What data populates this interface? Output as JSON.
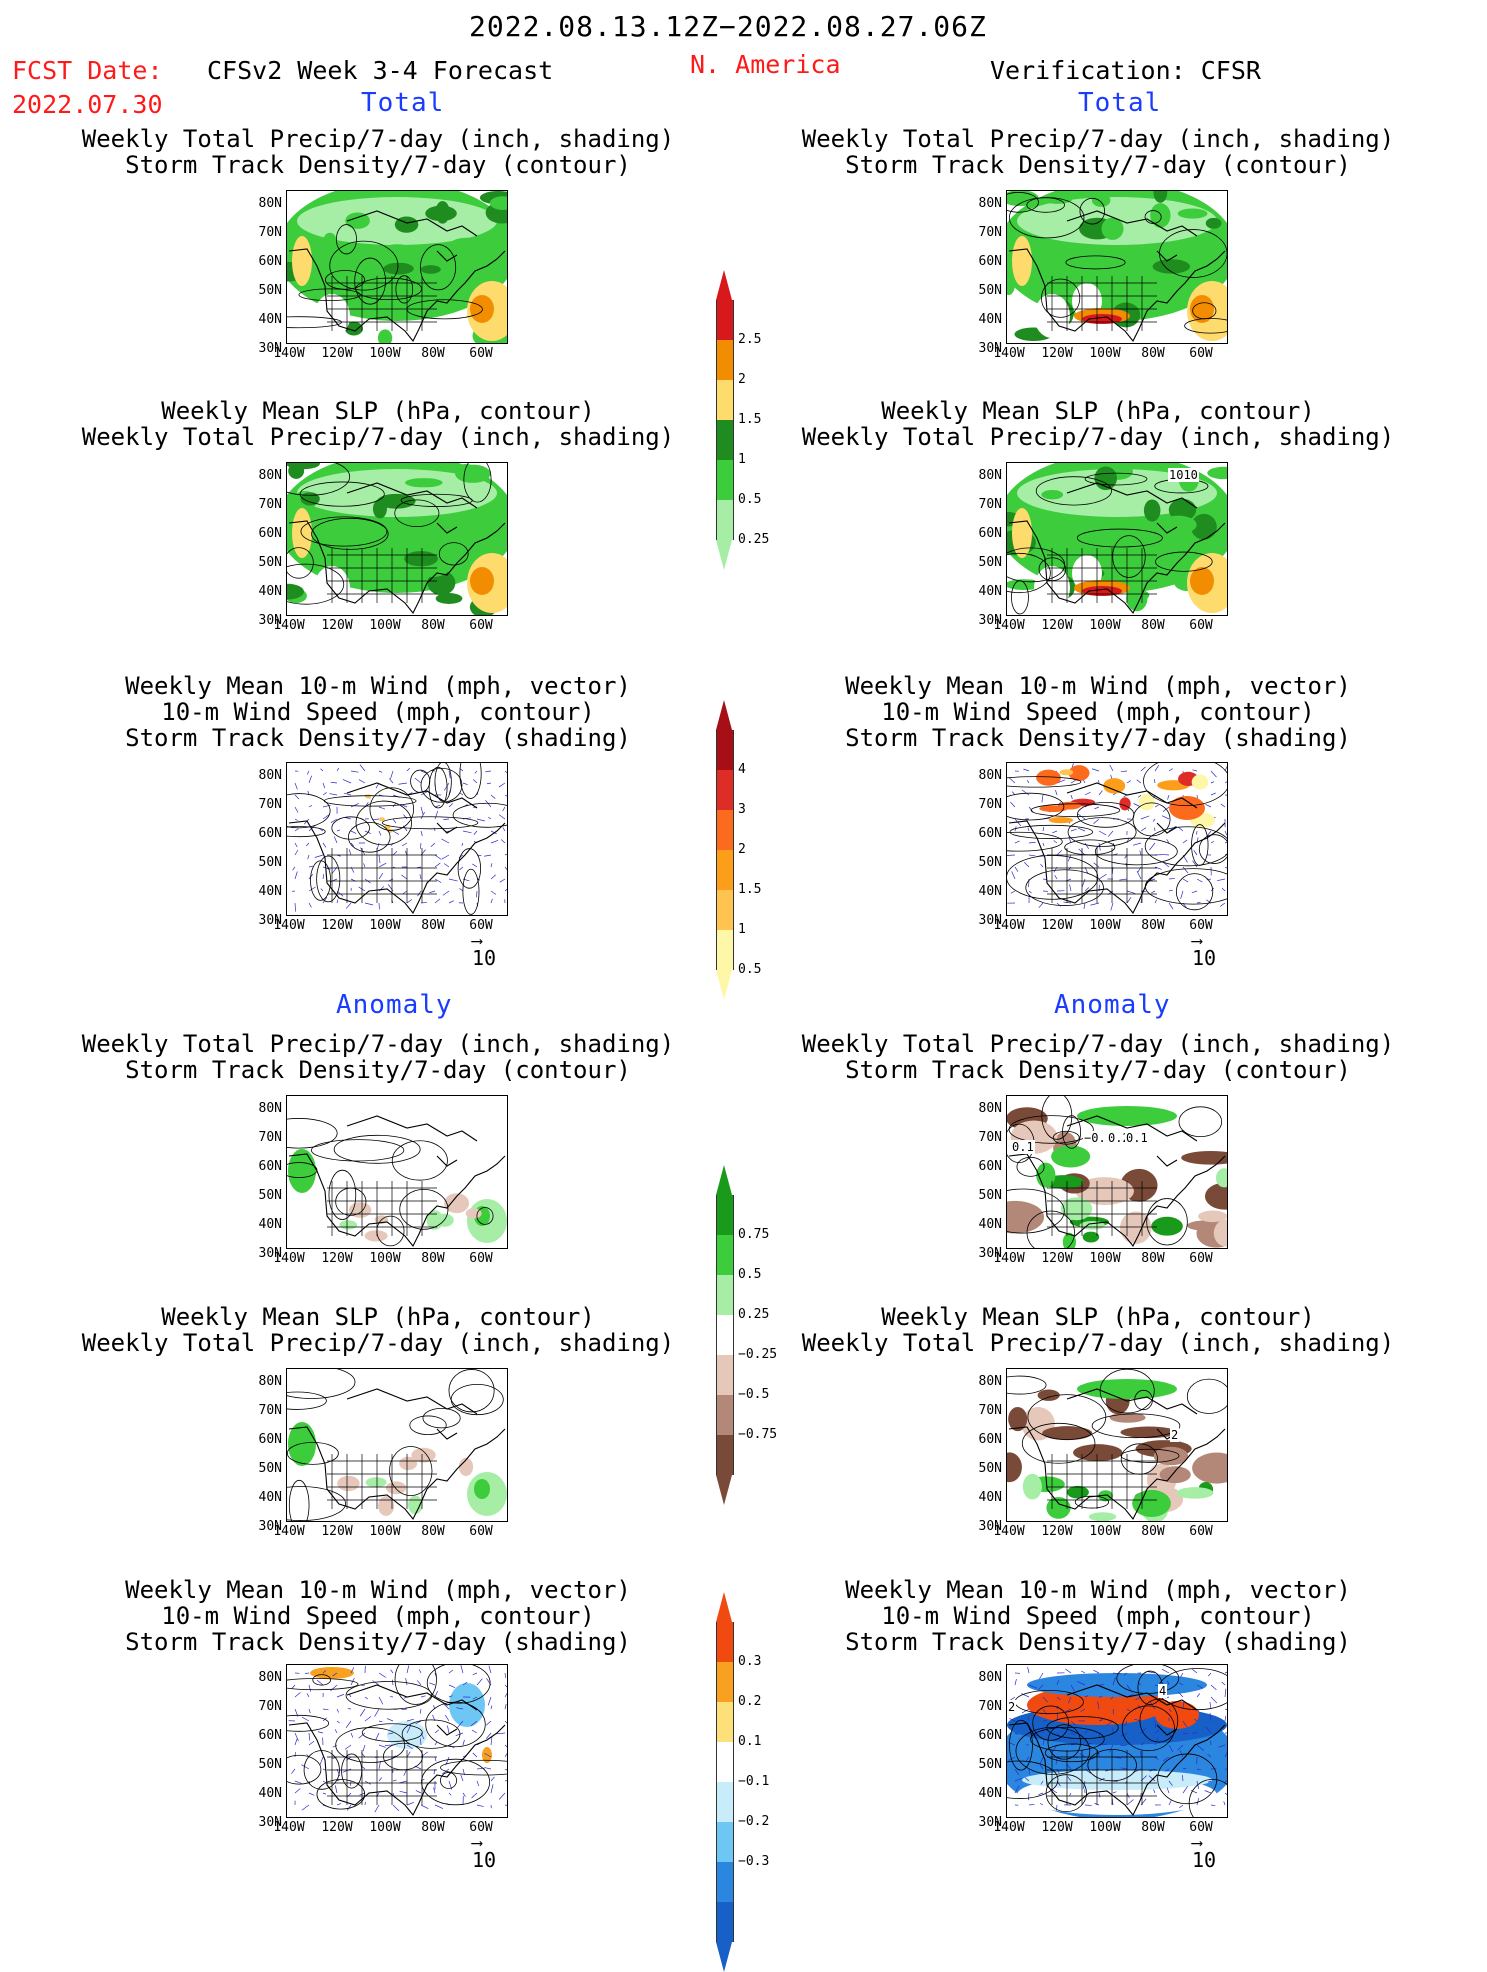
{
  "header": {
    "date_range": "2022.08.13.12Z−2022.08.27.06Z",
    "fcst_label": "FCST Date:",
    "fcst_date": "2022.07.30",
    "model_title": "CFSv2 Week 3-4 Forecast",
    "region": "N. America",
    "verification": "Verification: CFSR"
  },
  "sections": {
    "total_label": "Total",
    "anomaly_label": "Anomaly"
  },
  "titles": {
    "precip_storm": [
      "Weekly Total Precip/7-day (inch, shading)",
      "Storm Track Density/7-day (contour)"
    ],
    "slp_precip": [
      "Weekly Mean SLP (hPa, contour)",
      "Weekly Total Precip/7-day (inch, shading)"
    ],
    "wind": [
      "Weekly Mean 10-m Wind (mph, vector)",
      "10-m Wind Speed (mph, contour)",
      "Storm Track Density/7-day (shading)"
    ]
  },
  "axes": {
    "lat_labels": [
      "80N",
      "70N",
      "60N",
      "50N",
      "40N",
      "30N"
    ],
    "lon_labels": [
      "140W",
      "120W",
      "100W",
      "80W",
      "60W"
    ]
  },
  "vector_reference": "10",
  "contour_labels": {
    "slp_total_cfsr": "1010",
    "precip_anom_cfsr": [
      "0.1",
      "−0.1",
      "0.2",
      "0.1"
    ],
    "slp_anom_cfsr": "2",
    "wind_anom_cfsr": [
      "2",
      "4"
    ]
  },
  "colorbars": {
    "precip_total": {
      "labels": [
        "2.5",
        "2",
        "1.5",
        "1",
        "0.5",
        "0.25"
      ],
      "colors": [
        "#d7191c",
        "#f28c00",
        "#fddb6d",
        "#1e8c1e",
        "#3ccc3c",
        "#a6eda6"
      ]
    },
    "storm_total": {
      "labels": [
        "4",
        "3",
        "2",
        "1.5",
        "1",
        "0.5"
      ],
      "colors": [
        "#a50f15",
        "#de2d26",
        "#fc6a1d",
        "#fd9e1a",
        "#fec44f",
        "#fff7a8"
      ]
    },
    "precip_anom": {
      "labels": [
        "0.75",
        "0.5",
        "0.25",
        "−0.25",
        "−0.5",
        "−0.75"
      ],
      "colors": [
        "#1a9a1a",
        "#3ccc3c",
        "#a6eda6",
        "#ffffff",
        "#e6c8bb",
        "#b48878",
        "#7a4a38"
      ]
    },
    "storm_anom": {
      "labels": [
        "0.3",
        "0.2",
        "0.1",
        "−0.1",
        "−0.2",
        "−0.3"
      ],
      "colors": [
        "#f04a10",
        "#f8a020",
        "#fde07a",
        "#ffffff",
        "#c8ecfa",
        "#6ec6f5",
        "#2b86e0",
        "#1660c8"
      ]
    }
  }
}
